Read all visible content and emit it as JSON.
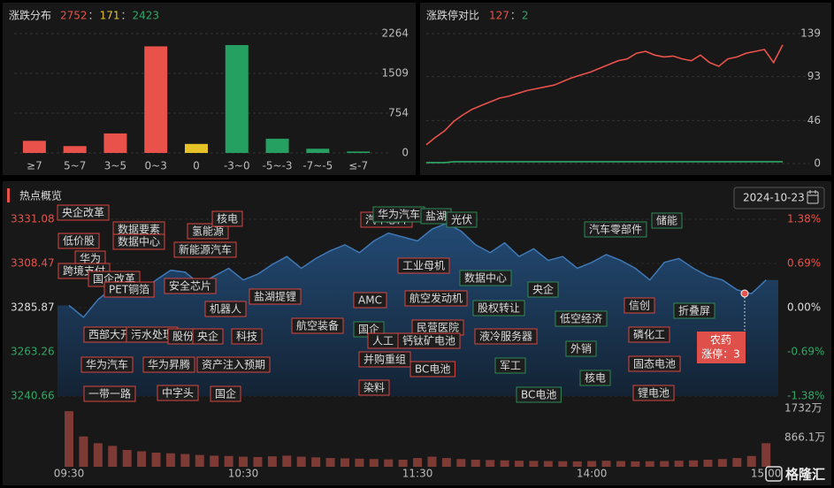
{
  "chart_data": [
    {
      "type": "bar",
      "title": "涨跌分布",
      "summary": {
        "values": [
          2752,
          171,
          2423
        ],
        "colors": [
          "#e8524a",
          "#e6c229",
          "#2fa865"
        ],
        "separator": "："
      },
      "categories": [
        "≥7",
        "5~7",
        "3~5",
        "0~3",
        "0",
        "-3~0",
        "-5~-3",
        "-7~-5",
        "≤-7"
      ],
      "values": [
        230,
        130,
        370,
        2022,
        171,
        2046,
        270,
        80,
        27
      ],
      "colors": [
        "#e8524a",
        "#e8524a",
        "#e8524a",
        "#e8524a",
        "#e6c229",
        "#26a061",
        "#26a061",
        "#26a061",
        "#26a061"
      ],
      "ylim": [
        0,
        2264
      ],
      "yticks": [
        0,
        754,
        1509,
        2264
      ],
      "grid": true
    },
    {
      "type": "line",
      "title": "涨跌停对比",
      "summary": {
        "values": [
          127,
          2
        ],
        "colors": [
          "#e8524a",
          "#2fa865"
        ],
        "separator": "："
      },
      "series": [
        {
          "color": "#e8524a",
          "values": [
            20,
            28,
            35,
            45,
            52,
            58,
            62,
            66,
            70,
            72,
            75,
            78,
            80,
            82,
            84,
            88,
            92,
            95,
            98,
            102,
            106,
            110,
            112,
            118,
            120,
            116,
            114,
            115,
            112,
            110,
            116,
            108,
            104,
            112,
            114,
            118,
            120,
            122,
            108,
            127
          ]
        },
        {
          "color": "#2fa865",
          "values": [
            1,
            1,
            1,
            2,
            2,
            2,
            2,
            2,
            2,
            2,
            2,
            2,
            2,
            2,
            2,
            2,
            2,
            2,
            2,
            2,
            2,
            2,
            2,
            2,
            2,
            2,
            2,
            2,
            2,
            2,
            2,
            2,
            2,
            2,
            2,
            2,
            2,
            2,
            2,
            2
          ]
        }
      ],
      "ylim": [
        0,
        139
      ],
      "yticks": [
        0,
        46,
        93,
        139
      ],
      "grid": true
    },
    {
      "type": "area",
      "title": "热点概览",
      "date": "2024-10-23",
      "color": "#3f78b5",
      "x": [
        "09:30",
        "09:35",
        "09:40",
        "09:45",
        "09:50",
        "09:55",
        "10:00",
        "10:05",
        "10:10",
        "10:15",
        "10:20",
        "10:25",
        "10:30",
        "10:35",
        "10:40",
        "10:45",
        "10:50",
        "10:55",
        "11:00",
        "11:05",
        "11:10",
        "11:15",
        "11:20",
        "11:25",
        "11:30",
        "13:05",
        "13:10",
        "13:15",
        "13:20",
        "13:25",
        "13:30",
        "13:35",
        "13:40",
        "13:45",
        "13:50",
        "13:55",
        "14:00",
        "14:05",
        "14:10",
        "14:15",
        "14:20",
        "14:25",
        "14:30",
        "14:35",
        "14:40",
        "14:45",
        "14:50",
        "14:55",
        "15:00"
      ],
      "values": [
        3287,
        3281,
        3290,
        3296,
        3292,
        3294,
        3300,
        3305,
        3304,
        3298,
        3302,
        3306,
        3300,
        3303,
        3308,
        3312,
        3306,
        3311,
        3315,
        3318,
        3314,
        3320,
        3324,
        3322,
        3320,
        3326,
        3329,
        3325,
        3318,
        3314,
        3319,
        3312,
        3316,
        3310,
        3312,
        3306,
        3309,
        3313,
        3310,
        3306,
        3300,
        3309,
        3311,
        3306,
        3302,
        3300,
        3295,
        3293,
        3300
      ],
      "ylim": [
        3240.66,
        3331.08
      ],
      "yticks": [
        3240.66,
        3263.26,
        3285.87,
        3308.47,
        3331.08
      ],
      "y2lim": [
        -1.38,
        1.38
      ],
      "y2ticks": [
        {
          "value": -1.38,
          "label": "-1.38%"
        },
        {
          "value": -0.69,
          "label": "-0.69%"
        },
        {
          "value": 0,
          "label": "0.00%"
        },
        {
          "value": 0.69,
          "label": "0.69%"
        },
        {
          "value": 1.38,
          "label": "1.38%"
        }
      ],
      "volume": {
        "color": "#7e3a35",
        "ylim": [
          0,
          1732
        ],
        "yticks": [
          {
            "value": 866.1,
            "label": "866.1万"
          },
          {
            "value": 1732,
            "label": "1732万"
          }
        ],
        "values": [
          1650,
          900,
          700,
          620,
          500,
          460,
          420,
          400,
          380,
          350,
          330,
          320,
          300,
          290,
          310,
          330,
          300,
          280,
          260,
          250,
          240,
          230,
          220,
          210,
          260,
          300,
          260,
          230,
          210,
          200,
          190,
          180,
          175,
          170,
          165,
          160,
          170,
          180,
          170,
          160,
          165,
          170,
          180,
          190,
          210,
          230,
          260,
          320,
          700
        ]
      },
      "tags": [
        "央企改革",
        "低价股",
        "数据要素",
        "数据中心",
        "华为",
        "跨境支付",
        "国企改革",
        "PET铜箔",
        "氢能源",
        "核电",
        "新能源汽车",
        "安全芯片",
        "机器人",
        "盐湖提锂",
        "航空装备",
        "西部大开发",
        "污水处理",
        "股份",
        "央企",
        "科技",
        "华为汽车",
        "华为昇腾",
        "资产注入预期",
        "中字头",
        "国企",
        "一带一路",
        "汽车芯片",
        "华为汽车",
        "盐湖",
        "光伏",
        "工业母机",
        "AMC",
        "航空发动机",
        "国企",
        "人工",
        "民营医院",
        "钙钛矿电池",
        "并购重组",
        "BC电池",
        "染料",
        "数据中心",
        "股权转让",
        "液冷服务器",
        "央企",
        "军工",
        "BC电池",
        "低空经济",
        "外销",
        "核电",
        "汽车零部件",
        "储能",
        "信创",
        "磷化工",
        "固态电池",
        "锂电池",
        "折叠屏"
      ],
      "annotation": {
        "title": "农药",
        "text": "涨停：3"
      },
      "watermark": "格隆汇"
    }
  ]
}
